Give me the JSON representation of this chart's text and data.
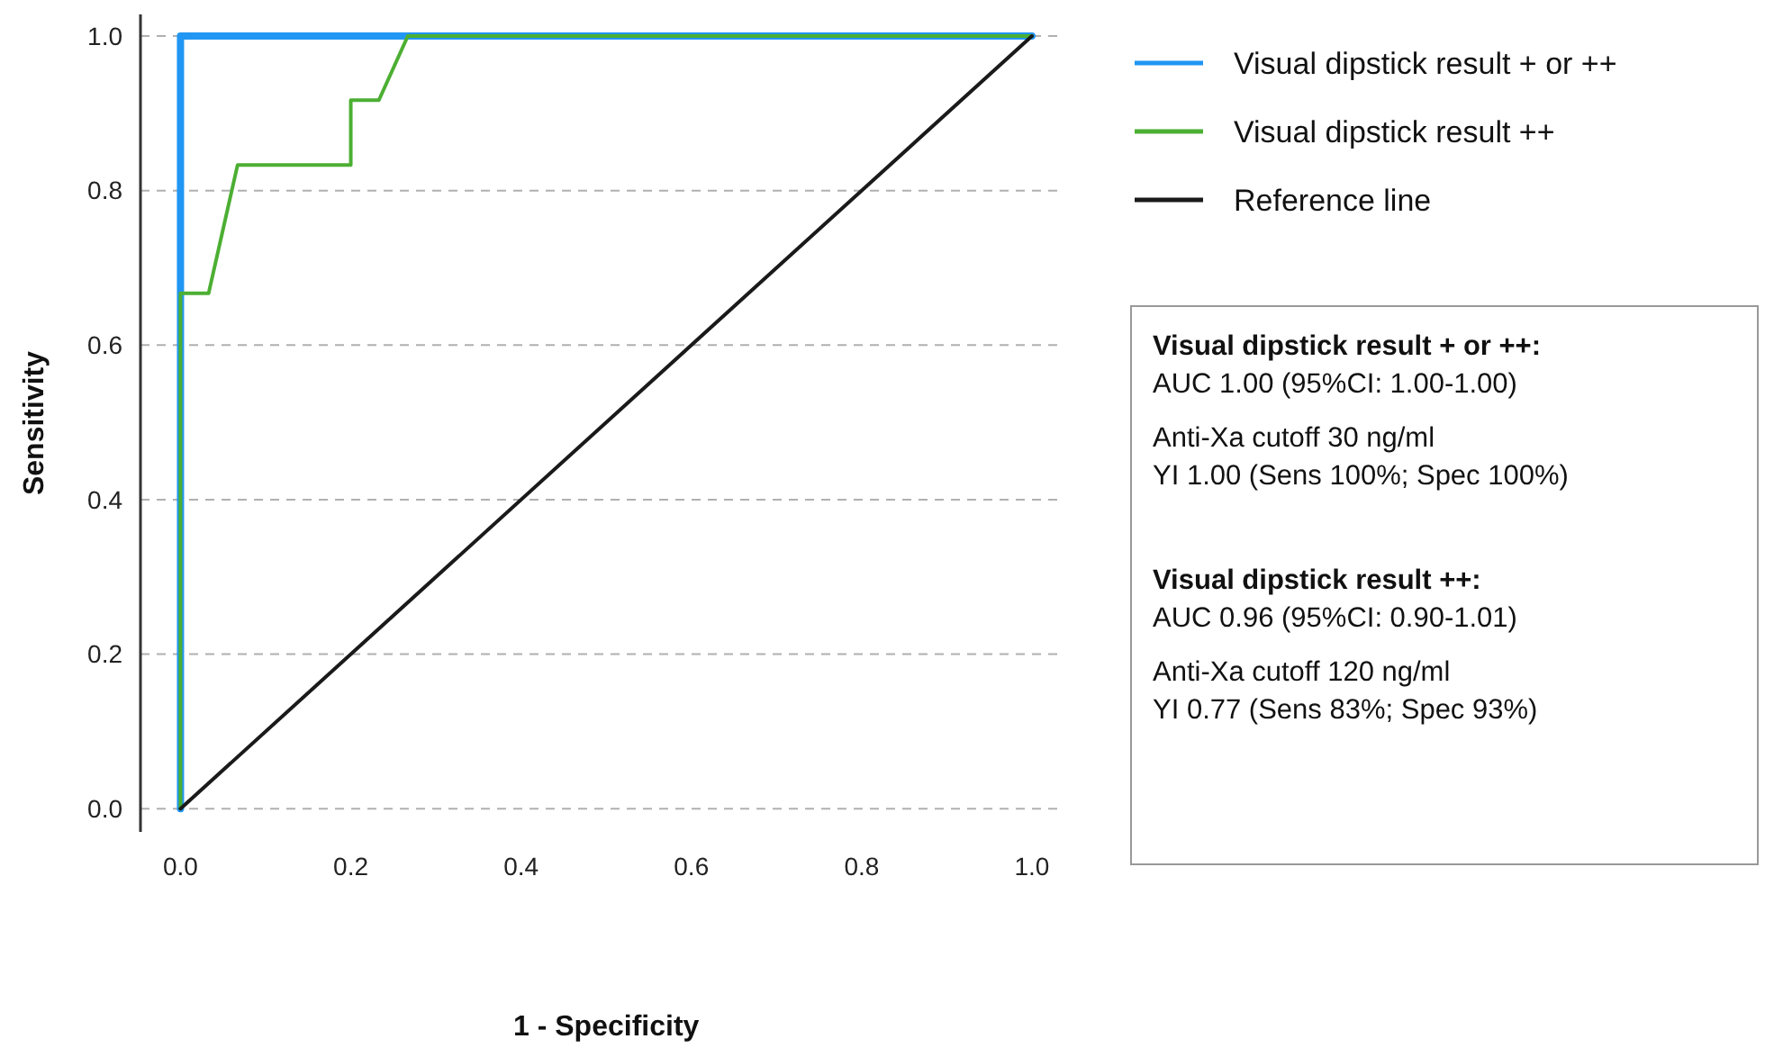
{
  "chart_data": {
    "type": "line",
    "xlabel": "1 - Specificity",
    "ylabel": "Sensitivity",
    "xlim": [
      -0.047,
      1.036
    ],
    "ylim": [
      -0.03,
      1.028
    ],
    "xticks": [
      {
        "value": 0,
        "label": "0.0"
      },
      0.2,
      0.4,
      0.6,
      0.8,
      {
        "value": 1,
        "label": "1.0"
      }
    ],
    "yticks": [
      {
        "value": 0,
        "label": "0.0"
      },
      0.2,
      0.4,
      0.6,
      0.8,
      {
        "value": 1,
        "label": "1.0"
      }
    ],
    "grid": "y",
    "legend": "top right",
    "line_style": "solid",
    "marker": "none",
    "series": [
      {
        "name": "Visual dipstick result + or ++",
        "color": "#2196f3",
        "x": [
          0,
          0,
          1
        ],
        "values": [
          0,
          1,
          1
        ]
      },
      {
        "name": "Visual dipstick result ++",
        "color": "#4caf33",
        "x": [
          0,
          0,
          0.033,
          0.067,
          0.2,
          0.2,
          0.233,
          0.267,
          1
        ],
        "values": [
          0,
          0.667,
          0.667,
          0.833,
          0.833,
          0.917,
          0.917,
          1,
          1
        ]
      },
      {
        "name": "Reference line",
        "color": "#1a1a1a",
        "x": [
          0,
          1
        ],
        "values": [
          0,
          1
        ]
      }
    ],
    "annotations": [
      "Visual dipstick result + or ++:",
      "AUC 1.00 (95%CI: 1.00-1.00)",
      "Anti-Xa cutoff 30 ng/ml",
      "YI 1.00 (Sens 100%; Spec 100%)",
      "Visual dipstick result ++:",
      "AUC 0.96 (95%CI: 0.90-1.01)",
      "Anti-Xa cutoff 120 ng/ml",
      "YI 0.77 (Sens 83%; Spec 93%)"
    ]
  }
}
